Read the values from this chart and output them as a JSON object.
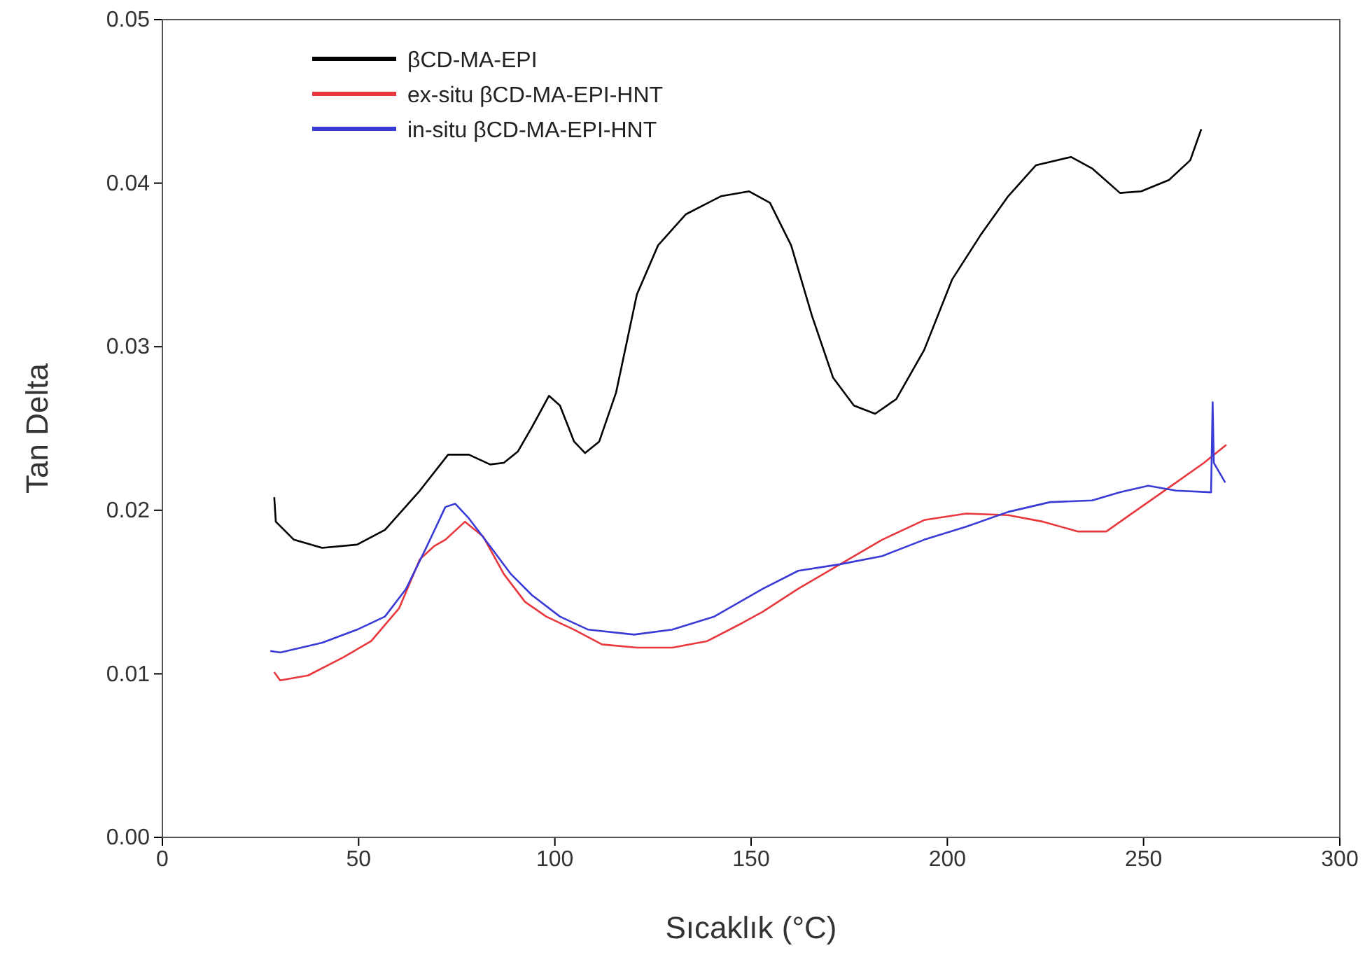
{
  "chart_data": {
    "type": "line",
    "xlabel": "Sıcaklık (°C)",
    "ylabel": "Tan Delta",
    "xlim": [
      0,
      300
    ],
    "xticks": [
      0,
      50,
      100,
      150,
      200,
      250,
      300
    ],
    "ylim": [
      0,
      0.05
    ],
    "yticks": [
      {
        "value": 0,
        "label": "0.00"
      },
      {
        "value": 0.01,
        "label": "0.01"
      },
      {
        "value": 0.02,
        "label": "0.02"
      },
      {
        "value": 0.03,
        "label": "0.03"
      },
      {
        "value": 0.04,
        "label": "0.04"
      },
      {
        "value": 0.05,
        "label": "0.05"
      }
    ],
    "grid": false,
    "legend": "top left",
    "marker": "none",
    "line_style": "solid",
    "series": [
      {
        "name": "βCD-MA-EPI",
        "color": "#000000",
        "x": [
          28.5,
          28.9,
          33.5,
          40.7,
          49.6,
          56.7,
          65.6,
          72.8,
          78.1,
          83.5,
          87,
          90.6,
          94.2,
          98.5,
          101.3,
          104.9,
          107.7,
          111.3,
          115.6,
          120.9,
          126.3,
          133.4,
          142.3,
          149.5,
          154.8,
          160.2,
          165.5,
          170.9,
          176.2,
          181.6,
          187,
          194.1,
          201.2,
          208.4,
          215.5,
          222.6,
          231.5,
          236.9,
          244,
          249.4,
          256.5,
          261.9,
          264.7
        ],
        "values": [
          0.0208,
          0.0193,
          0.0182,
          0.0177,
          0.0179,
          0.0188,
          0.0212,
          0.0234,
          0.0234,
          0.0228,
          0.0229,
          0.0236,
          0.0251,
          0.027,
          0.0264,
          0.0242,
          0.0235,
          0.0242,
          0.0272,
          0.0332,
          0.0362,
          0.0381,
          0.0392,
          0.0395,
          0.0388,
          0.0362,
          0.0319,
          0.0281,
          0.0264,
          0.0259,
          0.0268,
          0.0298,
          0.0341,
          0.0368,
          0.0392,
          0.0411,
          0.0416,
          0.0409,
          0.0394,
          0.0395,
          0.0402,
          0.0414,
          0.0433
        ]
      },
      {
        "name": "ex-situ βCD-MA-EPI-HNT",
        "color": "#e8383d",
        "x": [
          28.5,
          30,
          37.1,
          46,
          53.2,
          60.3,
          65.6,
          69.2,
          72.1,
          77.1,
          81.7,
          87,
          92.4,
          97.8,
          104.9,
          112,
          120.9,
          129.9,
          138.8,
          147.7,
          153,
          162,
          172.7,
          183.4,
          194.1,
          204.8,
          215.5,
          224.4,
          233.3,
          240.5,
          247.6,
          258.3,
          265.4,
          271.1
        ],
        "values": [
          0.0101,
          0.0096,
          0.0099,
          0.011,
          0.012,
          0.014,
          0.017,
          0.0178,
          0.0182,
          0.0193,
          0.0184,
          0.0161,
          0.0144,
          0.0135,
          0.0127,
          0.0118,
          0.0116,
          0.0116,
          0.012,
          0.0131,
          0.0138,
          0.0152,
          0.0167,
          0.0182,
          0.0194,
          0.0198,
          0.0197,
          0.0193,
          0.0187,
          0.0187,
          0.0199,
          0.0217,
          0.0229,
          0.024
        ]
      },
      {
        "name": "in-situ βCD-MA-EPI-HNT",
        "color": "#3a3ad6",
        "x": [
          27.5,
          30,
          40.7,
          49.6,
          56.7,
          62.1,
          67.4,
          72.1,
          74.6,
          78.1,
          83.5,
          88.8,
          94.2,
          101.3,
          108.5,
          120.2,
          129.9,
          140.6,
          153,
          162,
          172.7,
          183.4,
          194.1,
          204.8,
          215.5,
          226.2,
          236.9,
          244,
          251.2,
          258.3,
          267.2,
          267.6,
          267.9,
          270.8
        ],
        "values": [
          0.0114,
          0.0113,
          0.0119,
          0.0127,
          0.0135,
          0.0152,
          0.0178,
          0.0202,
          0.0204,
          0.0195,
          0.0178,
          0.0161,
          0.0148,
          0.0135,
          0.0127,
          0.0124,
          0.0127,
          0.0135,
          0.0152,
          0.0163,
          0.0167,
          0.0172,
          0.0182,
          0.019,
          0.0199,
          0.0205,
          0.0206,
          0.0211,
          0.0215,
          0.0212,
          0.0211,
          0.0266,
          0.0229,
          0.0217
        ]
      }
    ]
  }
}
